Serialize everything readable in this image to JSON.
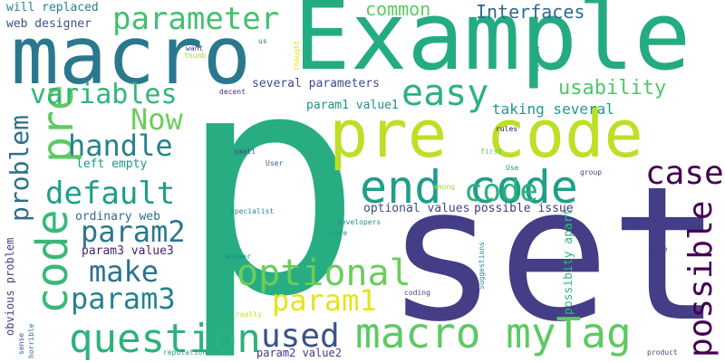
{
  "words": [
    {
      "text": "p",
      "color": "#27ad81"
    },
    {
      "text": "set",
      "color": "#433e85"
    },
    {
      "text": "Example",
      "color": "#25ab82"
    },
    {
      "text": "macro",
      "color": "#2a788e"
    },
    {
      "text": "pre code",
      "color": "#bddf26"
    },
    {
      "text": "end code",
      "color": "#1f9e89"
    },
    {
      "text": "code",
      "color": "#38b977"
    },
    {
      "text": "pre",
      "color": "#5ec962"
    },
    {
      "text": "macro myTag",
      "color": "#5ec962"
    },
    {
      "text": "question",
      "color": "#2db27d"
    },
    {
      "text": "optional",
      "color": "#6ccd5a"
    },
    {
      "text": "param1",
      "color": "#e5e419"
    },
    {
      "text": "param2",
      "color": "#2a788e"
    },
    {
      "text": "param3",
      "color": "#26828e"
    },
    {
      "text": "parameter",
      "color": "#44bf70"
    },
    {
      "text": "easy",
      "color": "#2db27d"
    },
    {
      "text": "variables",
      "color": "#32b67a"
    },
    {
      "text": "handle",
      "color": "#26828e"
    },
    {
      "text": "default",
      "color": "#1f9e89"
    },
    {
      "text": "make",
      "color": "#2c728e"
    },
    {
      "text": "used",
      "color": "#3b528b"
    },
    {
      "text": "Now",
      "color": "#6ccd5a"
    },
    {
      "text": "problem",
      "color": "#2e6e8e"
    },
    {
      "text": "case",
      "color": "#440154"
    },
    {
      "text": "possible",
      "color": "#440154"
    },
    {
      "text": "code",
      "color": "#2db27d"
    },
    {
      "text": "usability",
      "color": "#52c569"
    },
    {
      "text": "Interfaces",
      "color": "#31688e"
    },
    {
      "text": "common",
      "color": "#5ec962"
    },
    {
      "text": "taking several",
      "color": "#1f988b"
    },
    {
      "text": "will replaced",
      "color": "#26828e"
    },
    {
      "text": "web designer",
      "color": "#3b528b"
    },
    {
      "text": "several parameters",
      "color": "#3e4a89"
    },
    {
      "text": "param1 value1",
      "color": "#21918c"
    },
    {
      "text": "left empty",
      "color": "#1f978b"
    },
    {
      "text": "ordinary web",
      "color": "#2e6e8e"
    },
    {
      "text": "param3 value3",
      "color": "#482173"
    },
    {
      "text": "optional values",
      "color": "#3e4a89"
    },
    {
      "text": "possible issue",
      "color": "#443a83"
    },
    {
      "text": "possibity apart",
      "color": "#35b779"
    },
    {
      "text": "obvious problem",
      "color": "#414487"
    },
    {
      "text": "param2 value2",
      "color": "#443a83"
    },
    {
      "text": "want",
      "color": "#3f4788"
    },
    {
      "text": "thumb",
      "color": "#a8db34"
    },
    {
      "text": "us",
      "color": "#2e6e8e"
    },
    {
      "text": "thought",
      "color": "#dde318"
    },
    {
      "text": "follow",
      "color": "#20a486"
    },
    {
      "text": "decent",
      "color": "#482878"
    },
    {
      "text": "rules",
      "color": "#30106b"
    },
    {
      "text": "small",
      "color": "#3e4a89"
    },
    {
      "text": "User",
      "color": "#355f8d"
    },
    {
      "text": "first",
      "color": "#5ec962"
    },
    {
      "text": "Use",
      "color": "#1f948c"
    },
    {
      "text": "group",
      "color": "#3e4a89"
    },
    {
      "text": "among",
      "color": "#95d840"
    },
    {
      "text": "specialist",
      "color": "#24868e"
    },
    {
      "text": "developers",
      "color": "#21918c"
    },
    {
      "text": "care",
      "color": "#1f978b"
    },
    {
      "text": "answer",
      "color": "#24868e"
    },
    {
      "text": "one",
      "color": "#443a83"
    },
    {
      "text": "Suggestions",
      "color": "#21918c"
    },
    {
      "text": "coding",
      "color": "#3f4788"
    },
    {
      "text": "really",
      "color": "#c2df23"
    },
    {
      "text": "sense",
      "color": "#3b528b"
    },
    {
      "text": "horrible",
      "color": "#2c728e"
    },
    {
      "text": "reputation",
      "color": "#1f9a8a"
    },
    {
      "text": "product",
      "color": "#3f4788"
    }
  ]
}
